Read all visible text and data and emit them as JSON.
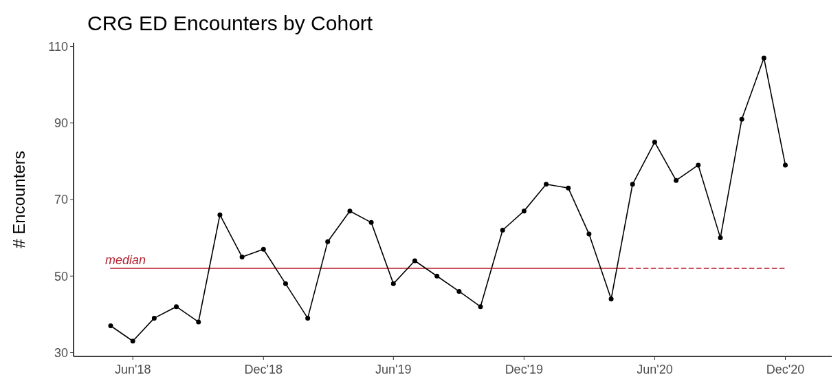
{
  "chart_data": {
    "type": "line",
    "title": "CRG ED Encounters by Cohort",
    "ylabel": "# Encounters",
    "xlim": [
      "2018-03-10",
      "2021-02-04"
    ],
    "ylim": [
      29,
      111
    ],
    "xticks": [
      {
        "value": "2018-06",
        "label": "Jun'18"
      },
      {
        "value": "2018-12",
        "label": "Dec'18"
      },
      {
        "value": "2019-06",
        "label": "Jun'19"
      },
      {
        "value": "2019-12",
        "label": "Dec'19"
      },
      {
        "value": "2020-06",
        "label": "Jun'20"
      },
      {
        "value": "2020-12",
        "label": "Dec'20"
      }
    ],
    "yticks": [
      30,
      50,
      70,
      90,
      110
    ],
    "grid": false,
    "marker": "circle",
    "line_style": "solid",
    "x": [
      "2018-05",
      "2018-06",
      "2018-07",
      "2018-08",
      "2018-09",
      "2018-10",
      "2018-11",
      "2018-12",
      "2019-01",
      "2019-02",
      "2019-03",
      "2019-04",
      "2019-05",
      "2019-06",
      "2019-07",
      "2019-08",
      "2019-09",
      "2019-10",
      "2019-11",
      "2019-12",
      "2020-01",
      "2020-02",
      "2020-03",
      "2020-04",
      "2020-05",
      "2020-06",
      "2020-07",
      "2020-08",
      "2020-09",
      "2020-10",
      "2020-11",
      "2020-12"
    ],
    "series": [
      {
        "color": "#000000",
        "values": [
          37,
          33,
          39,
          42,
          38,
          66,
          55,
          57,
          48,
          39,
          59,
          67,
          64,
          48,
          54,
          50,
          46,
          42,
          62,
          67,
          74,
          73,
          61,
          44,
          74,
          85,
          75,
          79,
          60,
          91,
          107,
          79
        ]
      },
      {
        "type": "line",
        "name": "median",
        "color": "#c8505a",
        "marker": "none",
        "line_style": "solid",
        "x": [
          "2018-05",
          "2020-04-15"
        ],
        "values": [
          52,
          52
        ]
      },
      {
        "type": "line",
        "color": "#c8505a",
        "marker": "none",
        "line_style": "dashed",
        "x": [
          "2020-04-15",
          "2020-12"
        ],
        "values": [
          52,
          52
        ]
      }
    ]
  }
}
